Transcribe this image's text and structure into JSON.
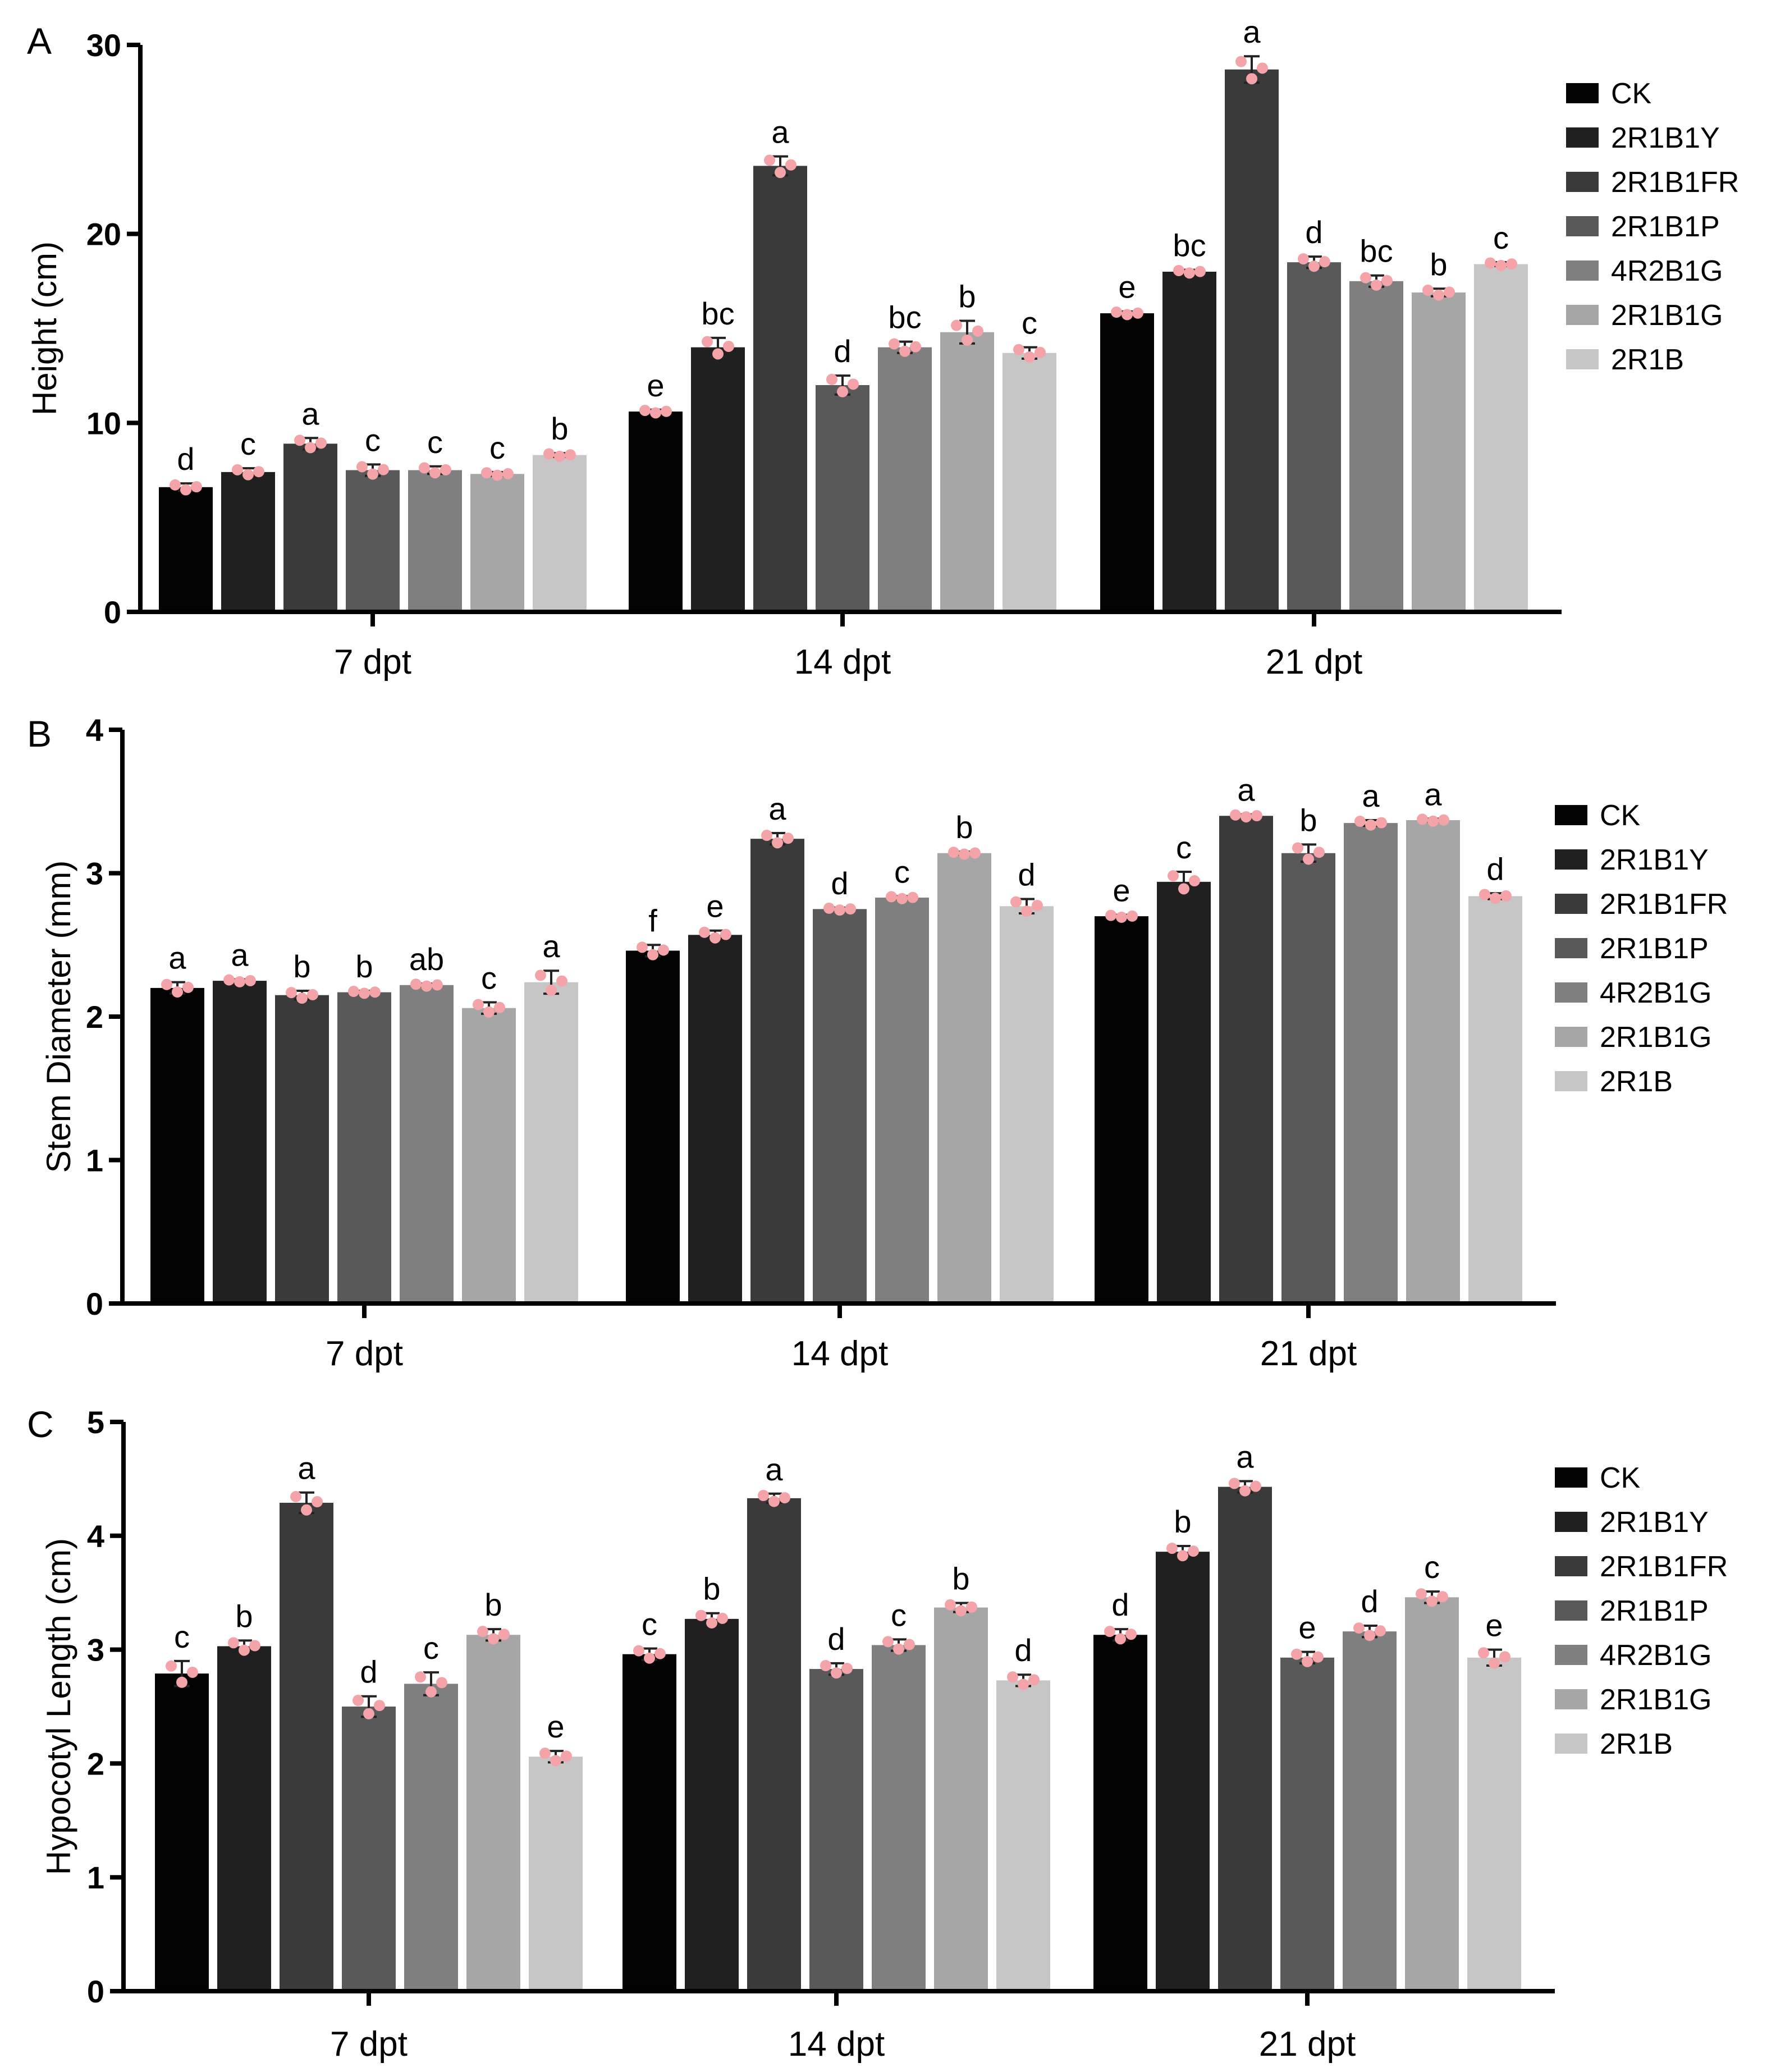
{
  "colors": {
    "series": [
      "#030303",
      "#202020",
      "#3a3a3a",
      "#595959",
      "#7f7f7f",
      "#a6a6a6",
      "#c6c6c6"
    ],
    "dots": "#f4a3a8",
    "errorbar": "#222222"
  },
  "chart_data": [
    {
      "panel": "A",
      "type": "bar",
      "ylabel": "Height (cm)",
      "ylim": [
        0,
        30
      ],
      "yticks": [
        0,
        10,
        20,
        30
      ],
      "categories": [
        "7 dpt",
        "14 dpt",
        "21 dpt"
      ],
      "series": [
        {
          "name": "CK",
          "values": [
            6.6,
            10.6,
            15.8
          ],
          "err": [
            0.2,
            0.1,
            0.1
          ],
          "letters": [
            "d",
            "e",
            "e"
          ]
        },
        {
          "name": "2R1B1Y",
          "values": [
            7.4,
            14.0,
            18.0
          ],
          "err": [
            0.2,
            0.5,
            0.1
          ],
          "letters": [
            "c",
            "bc",
            "bc"
          ]
        },
        {
          "name": "2R1B1FR",
          "values": [
            8.9,
            23.6,
            28.7
          ],
          "err": [
            0.3,
            0.5,
            0.7
          ],
          "letters": [
            "a",
            "a",
            "a"
          ]
        },
        {
          "name": "2R1B1P",
          "values": [
            7.5,
            12.0,
            18.5
          ],
          "err": [
            0.3,
            0.5,
            0.3
          ],
          "letters": [
            "c",
            "d",
            "d"
          ]
        },
        {
          "name": "4R2B1G",
          "values": [
            7.5,
            14.0,
            17.5
          ],
          "err": [
            0.2,
            0.3,
            0.3
          ],
          "letters": [
            "c",
            "bc",
            "bc"
          ]
        },
        {
          "name": "2R1B1G",
          "values": [
            7.3,
            14.8,
            16.9
          ],
          "err": [
            0.1,
            0.6,
            0.2
          ],
          "letters": [
            "c",
            "b",
            "b"
          ]
        },
        {
          "name": "2R1B",
          "values": [
            8.3,
            13.7,
            18.4
          ],
          "err": [
            0.1,
            0.3,
            0.1
          ],
          "letters": [
            "b",
            "c",
            "c"
          ]
        }
      ]
    },
    {
      "panel": "B",
      "type": "bar",
      "ylabel": "Stem Diameter (mm)",
      "ylim": [
        0,
        4
      ],
      "yticks": [
        0,
        1,
        2,
        3,
        4
      ],
      "categories": [
        "7 dpt",
        "14 dpt",
        "21 dpt"
      ],
      "series": [
        {
          "name": "CK",
          "values": [
            2.2,
            2.46,
            2.7
          ],
          "err": [
            0.04,
            0.04,
            0.01
          ],
          "letters": [
            "a",
            "f",
            "e"
          ]
        },
        {
          "name": "2R1B1Y",
          "values": [
            2.25,
            2.57,
            2.94
          ],
          "err": [
            0.01,
            0.03,
            0.07
          ],
          "letters": [
            "a",
            "e",
            "c"
          ]
        },
        {
          "name": "2R1B1FR",
          "values": [
            2.15,
            3.24,
            3.4
          ],
          "err": [
            0.03,
            0.04,
            0.01
          ],
          "letters": [
            "b",
            "a",
            "a"
          ]
        },
        {
          "name": "2R1B1P",
          "values": [
            2.17,
            2.75,
            3.14
          ],
          "err": [
            0.01,
            0.01,
            0.06
          ],
          "letters": [
            "b",
            "d",
            "b"
          ]
        },
        {
          "name": "4R2B1G",
          "values": [
            2.22,
            2.83,
            3.35
          ],
          "err": [
            0.01,
            0.01,
            0.02
          ],
          "letters": [
            "ab",
            "c",
            "a"
          ]
        },
        {
          "name": "2R1B1G",
          "values": [
            2.06,
            3.14,
            3.37
          ],
          "err": [
            0.04,
            0.01,
            0.01
          ],
          "letters": [
            "c",
            "b",
            "a"
          ]
        },
        {
          "name": "2R1B",
          "values": [
            2.24,
            2.77,
            2.84
          ],
          "err": [
            0.08,
            0.05,
            0.02
          ],
          "letters": [
            "a",
            "d",
            "d"
          ]
        }
      ]
    },
    {
      "panel": "C",
      "type": "bar",
      "ylabel": "Hypocotyl Length (cm)",
      "ylim": [
        0,
        5
      ],
      "yticks": [
        0,
        1,
        2,
        3,
        4,
        5
      ],
      "categories": [
        "7 dpt",
        "14 dpt",
        "21 dpt"
      ],
      "series": [
        {
          "name": "CK",
          "values": [
            2.79,
            2.96,
            3.13
          ],
          "err": [
            0.11,
            0.05,
            0.05
          ],
          "letters": [
            "c",
            "c",
            "d"
          ]
        },
        {
          "name": "2R1B1Y",
          "values": [
            3.03,
            3.27,
            3.86
          ],
          "err": [
            0.05,
            0.05,
            0.05
          ],
          "letters": [
            "b",
            "b",
            "b"
          ]
        },
        {
          "name": "2R1B1FR",
          "values": [
            4.29,
            4.33,
            4.43
          ],
          "err": [
            0.09,
            0.04,
            0.05
          ],
          "letters": [
            "a",
            "a",
            "a"
          ]
        },
        {
          "name": "2R1B1P",
          "values": [
            2.5,
            2.83,
            2.93
          ],
          "err": [
            0.09,
            0.05,
            0.05
          ],
          "letters": [
            "d",
            "d",
            "e"
          ]
        },
        {
          "name": "4R2B1G",
          "values": [
            2.7,
            3.04,
            3.16
          ],
          "err": [
            0.1,
            0.05,
            0.05
          ],
          "letters": [
            "c",
            "c",
            "d"
          ]
        },
        {
          "name": "2R1B1G",
          "values": [
            3.13,
            3.37,
            3.46
          ],
          "err": [
            0.05,
            0.04,
            0.05
          ],
          "letters": [
            "b",
            "b",
            "c"
          ]
        },
        {
          "name": "2R1B",
          "values": [
            2.06,
            2.73,
            2.93
          ],
          "err": [
            0.05,
            0.05,
            0.07
          ],
          "letters": [
            "e",
            "d",
            "e"
          ]
        }
      ]
    }
  ]
}
